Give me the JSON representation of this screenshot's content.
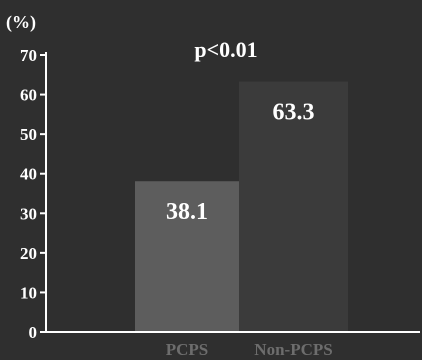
{
  "chart_data": {
    "type": "bar",
    "ylabel": "(%)",
    "ylim": [
      0,
      70
    ],
    "yticks": [
      0,
      10,
      20,
      30,
      40,
      50,
      60,
      70
    ],
    "categories": [
      "PCPS",
      "Non-PCPS"
    ],
    "values": [
      38.1,
      63.3
    ],
    "data_labels": [
      "38.1",
      "63.3"
    ],
    "annotation": "p<0.01",
    "grid": false,
    "colors": {
      "background": "#2f2f2f",
      "bar_pcps": "#5d5d5d",
      "bar_non_pcps": "#3b3b3b",
      "axis": "#ffffff"
    }
  }
}
